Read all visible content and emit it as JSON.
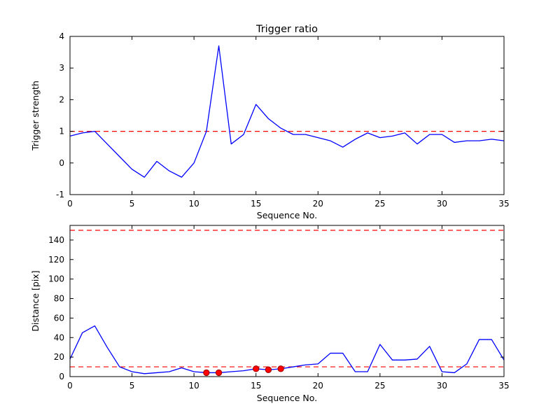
{
  "figure": {
    "background": "#ffffff",
    "axes_color": "#000000",
    "line_color": "#0000ff",
    "threshold_color": "#ff0000",
    "marker_color": "#ff0000"
  },
  "chart_data": [
    {
      "type": "line",
      "title": "Trigger ratio",
      "xlabel": "Sequence No.",
      "ylabel": "Trigger strength",
      "xlim": [
        0,
        35
      ],
      "ylim": [
        -1,
        4
      ],
      "xticks": [
        0,
        5,
        10,
        15,
        20,
        25,
        30,
        35
      ],
      "yticks": [
        -1,
        0,
        1,
        2,
        3,
        4
      ],
      "grid": false,
      "legend": "none",
      "x": [
        0,
        1,
        2,
        3,
        4,
        5,
        6,
        7,
        8,
        9,
        10,
        11,
        12,
        13,
        14,
        15,
        16,
        17,
        18,
        19,
        20,
        21,
        22,
        23,
        24,
        25,
        26,
        27,
        28,
        29,
        30,
        31,
        32,
        33,
        34,
        35
      ],
      "series": [
        {
          "name": "trigger-strength",
          "color": "#0000ff",
          "values": [
            0.85,
            0.95,
            1.0,
            0.6,
            0.2,
            -0.2,
            -0.45,
            0.05,
            -0.25,
            -0.45,
            0.0,
            1.0,
            3.7,
            0.6,
            0.9,
            1.85,
            1.4,
            1.1,
            0.9,
            0.9,
            0.8,
            0.7,
            0.5,
            0.75,
            0.95,
            0.8,
            0.85,
            0.95,
            0.6,
            0.9,
            0.9,
            0.65,
            0.7,
            0.7,
            0.75,
            0.7
          ]
        }
      ],
      "hlines": [
        {
          "y": 1,
          "color": "#ff0000",
          "style": "dashed"
        }
      ],
      "markers": {
        "color": "#ff0000",
        "points": []
      }
    },
    {
      "type": "line",
      "title": "",
      "xlabel": "Sequence No.",
      "ylabel": "Distance [pix]",
      "xlim": [
        0,
        35
      ],
      "ylim": [
        0,
        155
      ],
      "xticks": [
        0,
        5,
        10,
        15,
        20,
        25,
        30,
        35
      ],
      "yticks": [
        0,
        20,
        40,
        60,
        80,
        100,
        120,
        140
      ],
      "grid": false,
      "legend": "none",
      "x": [
        0,
        1,
        2,
        3,
        4,
        5,
        6,
        7,
        8,
        9,
        10,
        11,
        12,
        13,
        14,
        15,
        16,
        17,
        18,
        19,
        20,
        21,
        22,
        23,
        24,
        25,
        26,
        27,
        28,
        29,
        30,
        31,
        32,
        33,
        34,
        35
      ],
      "series": [
        {
          "name": "distance-pix",
          "color": "#0000ff",
          "values": [
            18,
            45,
            52,
            30,
            10,
            5,
            3,
            4,
            5,
            9,
            5,
            4,
            4,
            5,
            6,
            8,
            7,
            8,
            10,
            12,
            13,
            24,
            24,
            5,
            5,
            33,
            17,
            17,
            18,
            31,
            5,
            4,
            13,
            38,
            38,
            17
          ]
        }
      ],
      "hlines": [
        {
          "y": 150,
          "color": "#ff0000",
          "style": "dashed"
        },
        {
          "y": 10,
          "color": "#ff0000",
          "style": "dashed"
        }
      ],
      "markers": {
        "color": "#ff0000",
        "points": [
          {
            "x": 11,
            "y": 4
          },
          {
            "x": 12,
            "y": 4
          },
          {
            "x": 15,
            "y": 8
          },
          {
            "x": 16,
            "y": 7
          },
          {
            "x": 17,
            "y": 8
          }
        ]
      }
    }
  ]
}
